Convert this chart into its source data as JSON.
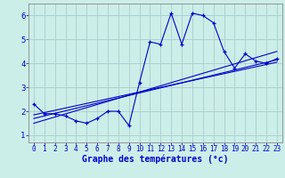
{
  "background_color": "#cceee8",
  "grid_color": "#aacccc",
  "line_color": "#0000cc",
  "xlabel": "Graphe des températures (°c)",
  "xlim": [
    -0.5,
    23.5
  ],
  "ylim": [
    0.7,
    6.5
  ],
  "x_ticks": [
    0,
    1,
    2,
    3,
    4,
    5,
    6,
    7,
    8,
    9,
    10,
    11,
    12,
    13,
    14,
    15,
    16,
    17,
    18,
    19,
    20,
    21,
    22,
    23
  ],
  "y_ticks": [
    1,
    2,
    3,
    4,
    5,
    6
  ],
  "curve_x": [
    0,
    1,
    2,
    3,
    4,
    5,
    6,
    7,
    8,
    9,
    10,
    11,
    12,
    13,
    14,
    15,
    16,
    17,
    18,
    19,
    20,
    21,
    22,
    23
  ],
  "curve_y": [
    2.3,
    1.9,
    1.9,
    1.8,
    1.6,
    1.5,
    1.7,
    2.0,
    2.0,
    1.4,
    3.2,
    4.9,
    4.8,
    6.1,
    4.8,
    6.1,
    6.0,
    5.7,
    4.5,
    3.8,
    4.4,
    4.1,
    4.0,
    4.2
  ],
  "line1_x": [
    0,
    23
  ],
  "line1_y": [
    1.85,
    4.05
  ],
  "line2_x": [
    0,
    23
  ],
  "line2_y": [
    1.7,
    4.15
  ],
  "line3_x": [
    0,
    23
  ],
  "line3_y": [
    1.5,
    4.5
  ]
}
